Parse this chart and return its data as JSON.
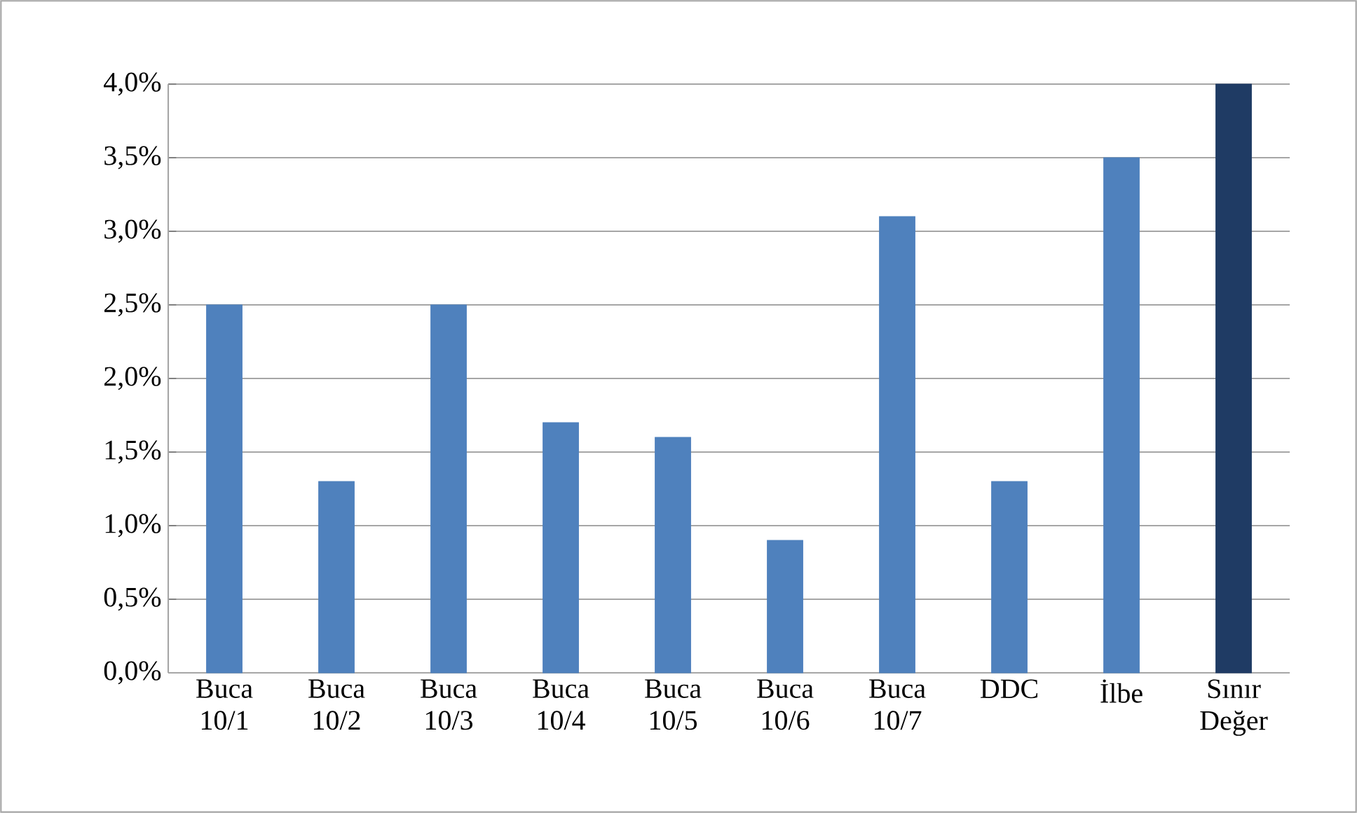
{
  "chart_data": {
    "type": "bar",
    "categories": [
      "Buca 10/1",
      "Buca 10/2",
      "Buca 10/3",
      "Buca 10/4",
      "Buca 10/5",
      "Buca 10/6",
      "Buca 10/7",
      "DDC",
      "İlbe",
      "Sınır Değer"
    ],
    "values": [
      2.5,
      1.3,
      2.5,
      1.7,
      1.6,
      0.9,
      3.1,
      1.3,
      3.5,
      4.0
    ],
    "colors": [
      "#4f81bd",
      "#4f81bd",
      "#4f81bd",
      "#4f81bd",
      "#4f81bd",
      "#4f81bd",
      "#4f81bd",
      "#4f81bd",
      "#4f81bd",
      "#1f3b64"
    ],
    "ylim": [
      0,
      4
    ],
    "yticks": [
      {
        "value": 0,
        "label": "0,0%"
      },
      {
        "value": 0.5,
        "label": "0,5%"
      },
      {
        "value": 1,
        "label": "1,0%"
      },
      {
        "value": 1.5,
        "label": "1,5%"
      },
      {
        "value": 2,
        "label": "2,0%"
      },
      {
        "value": 2.5,
        "label": "2,5%"
      },
      {
        "value": 3,
        "label": "3,0%"
      },
      {
        "value": 3.5,
        "label": "3,5%"
      },
      {
        "value": 4,
        "label": "4,0%"
      }
    ],
    "grid": "y"
  }
}
